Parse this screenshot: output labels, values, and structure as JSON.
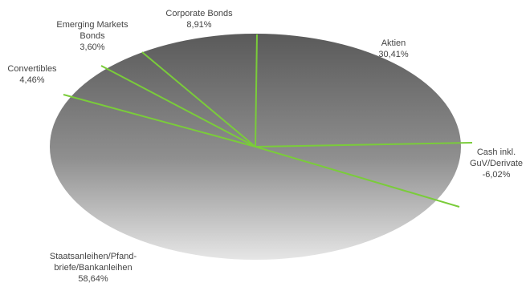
{
  "chart_data": {
    "type": "pie",
    "style": "3d-tilted",
    "legend": "none",
    "slice_color": "#7acc3a",
    "slices": [
      {
        "label": [
          "Aktien"
        ],
        "value_text": "30,41%",
        "value": 30.41
      },
      {
        "label": [
          "Cash inkl.",
          "GuV/Derivate"
        ],
        "value_text": "-6,02%",
        "value": -6.02
      },
      {
        "label": [
          "Staatsanleihen/Pfand-",
          "briefe/Bankanleihen"
        ],
        "value_text": "58,64%",
        "value": 58.64
      },
      {
        "label": [
          "Convertibles"
        ],
        "value_text": "4,46%",
        "value": 4.46
      },
      {
        "label": [
          "Emerging Markets",
          "Bonds"
        ],
        "value_text": "3,60%",
        "value": 3.6
      },
      {
        "label": [
          "Corporate Bonds"
        ],
        "value_text": "8,91%",
        "value": 8.91
      }
    ]
  }
}
